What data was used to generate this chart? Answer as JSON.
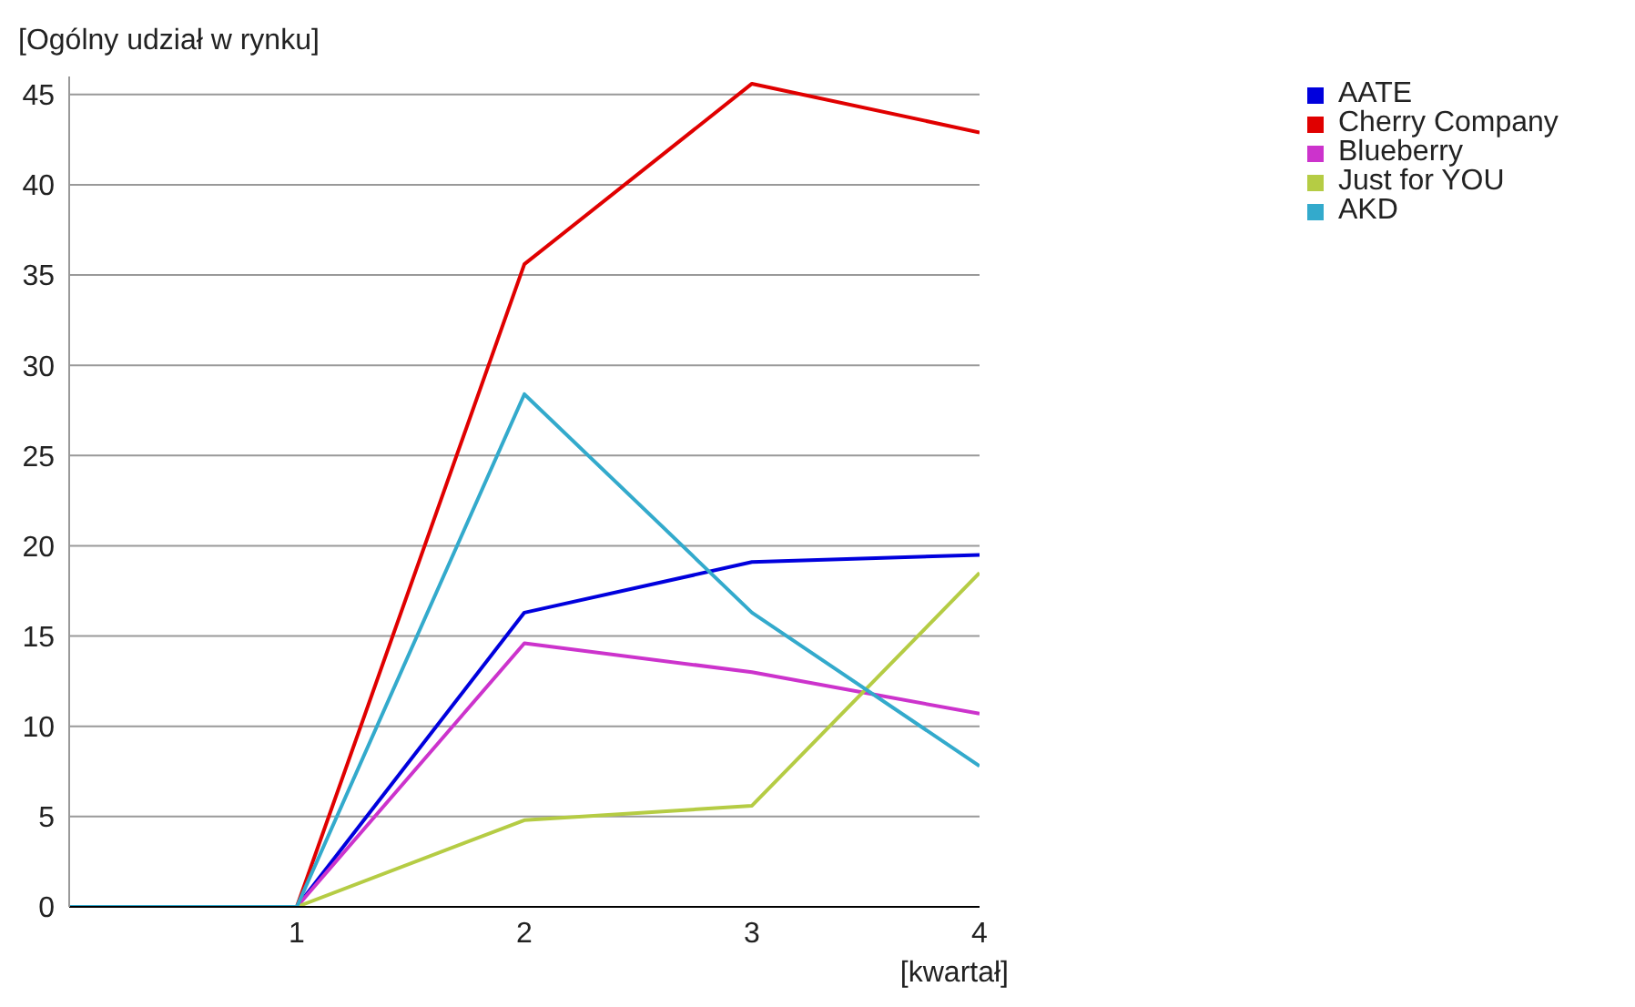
{
  "chart_data": {
    "type": "line",
    "ylabel": "[Ogólny udział w rynku]",
    "xlabel": "[kwartał]",
    "x": [
      0,
      1,
      2,
      3,
      4
    ],
    "xlim": [
      0,
      4
    ],
    "xticks": [
      1,
      2,
      3,
      4
    ],
    "ylim": [
      0,
      46
    ],
    "yticks": [
      0,
      5,
      10,
      15,
      20,
      25,
      30,
      35,
      40,
      45
    ],
    "grid": "y",
    "legend": "top right",
    "marker": "none",
    "series": [
      {
        "name": "AATE",
        "color": "#0000dd",
        "values": [
          0,
          0,
          16.3,
          19.1,
          19.5
        ]
      },
      {
        "name": "Cherry Company",
        "color": "#e00000",
        "values": [
          0,
          0,
          35.6,
          45.6,
          42.9
        ]
      },
      {
        "name": "Blueberry",
        "color": "#cc33cc",
        "values": [
          0,
          0,
          14.6,
          13.0,
          10.7
        ]
      },
      {
        "name": "Just for YOU",
        "color": "#b5cc44",
        "values": [
          0,
          0,
          4.8,
          5.6,
          18.5
        ]
      },
      {
        "name": "AKD",
        "color": "#33aacc",
        "values": [
          0,
          0,
          28.4,
          16.3,
          7.8
        ]
      }
    ]
  }
}
